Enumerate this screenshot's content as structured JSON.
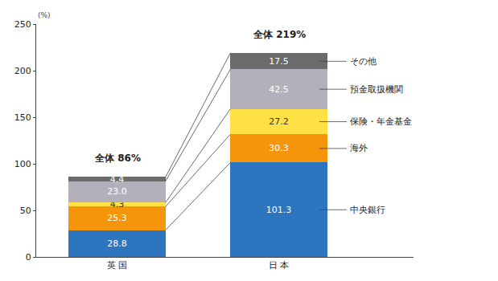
{
  "chart_data": {
    "type": "bar",
    "stacked": true,
    "data_labels": true,
    "grid": false,
    "y_label": "(%)",
    "categories": [
      "英 国",
      "日 本"
    ],
    "annotations": [
      "全体 86%",
      "全体 219%"
    ],
    "ylim": [
      0,
      250
    ],
    "yticks": [
      0,
      50,
      100,
      150,
      200,
      250
    ],
    "series": [
      {
        "name": "中央銀行",
        "color": "#2e75c0",
        "values": [
          28.8,
          101.3
        ],
        "value_labels": [
          "28.8",
          "101.3"
        ]
      },
      {
        "name": "海外",
        "color": "#f5960a",
        "values": [
          25.3,
          30.3
        ],
        "value_labels": [
          "25.3",
          "30.3"
        ]
      },
      {
        "name": "保険・年金基金",
        "color": "#ffe045",
        "values": [
          4.3,
          27.2
        ],
        "value_labels": [
          "4.3",
          "27.2"
        ]
      },
      {
        "name": "預金取扱機関",
        "color": "#b3b0bb",
        "values": [
          23.0,
          42.5
        ],
        "value_labels": [
          "23.0",
          "42.5"
        ]
      },
      {
        "name": "その他",
        "color": "#6b6b6b",
        "values": [
          4.4,
          17.5
        ],
        "value_labels": [
          "4.4",
          "17.5"
        ]
      }
    ]
  }
}
